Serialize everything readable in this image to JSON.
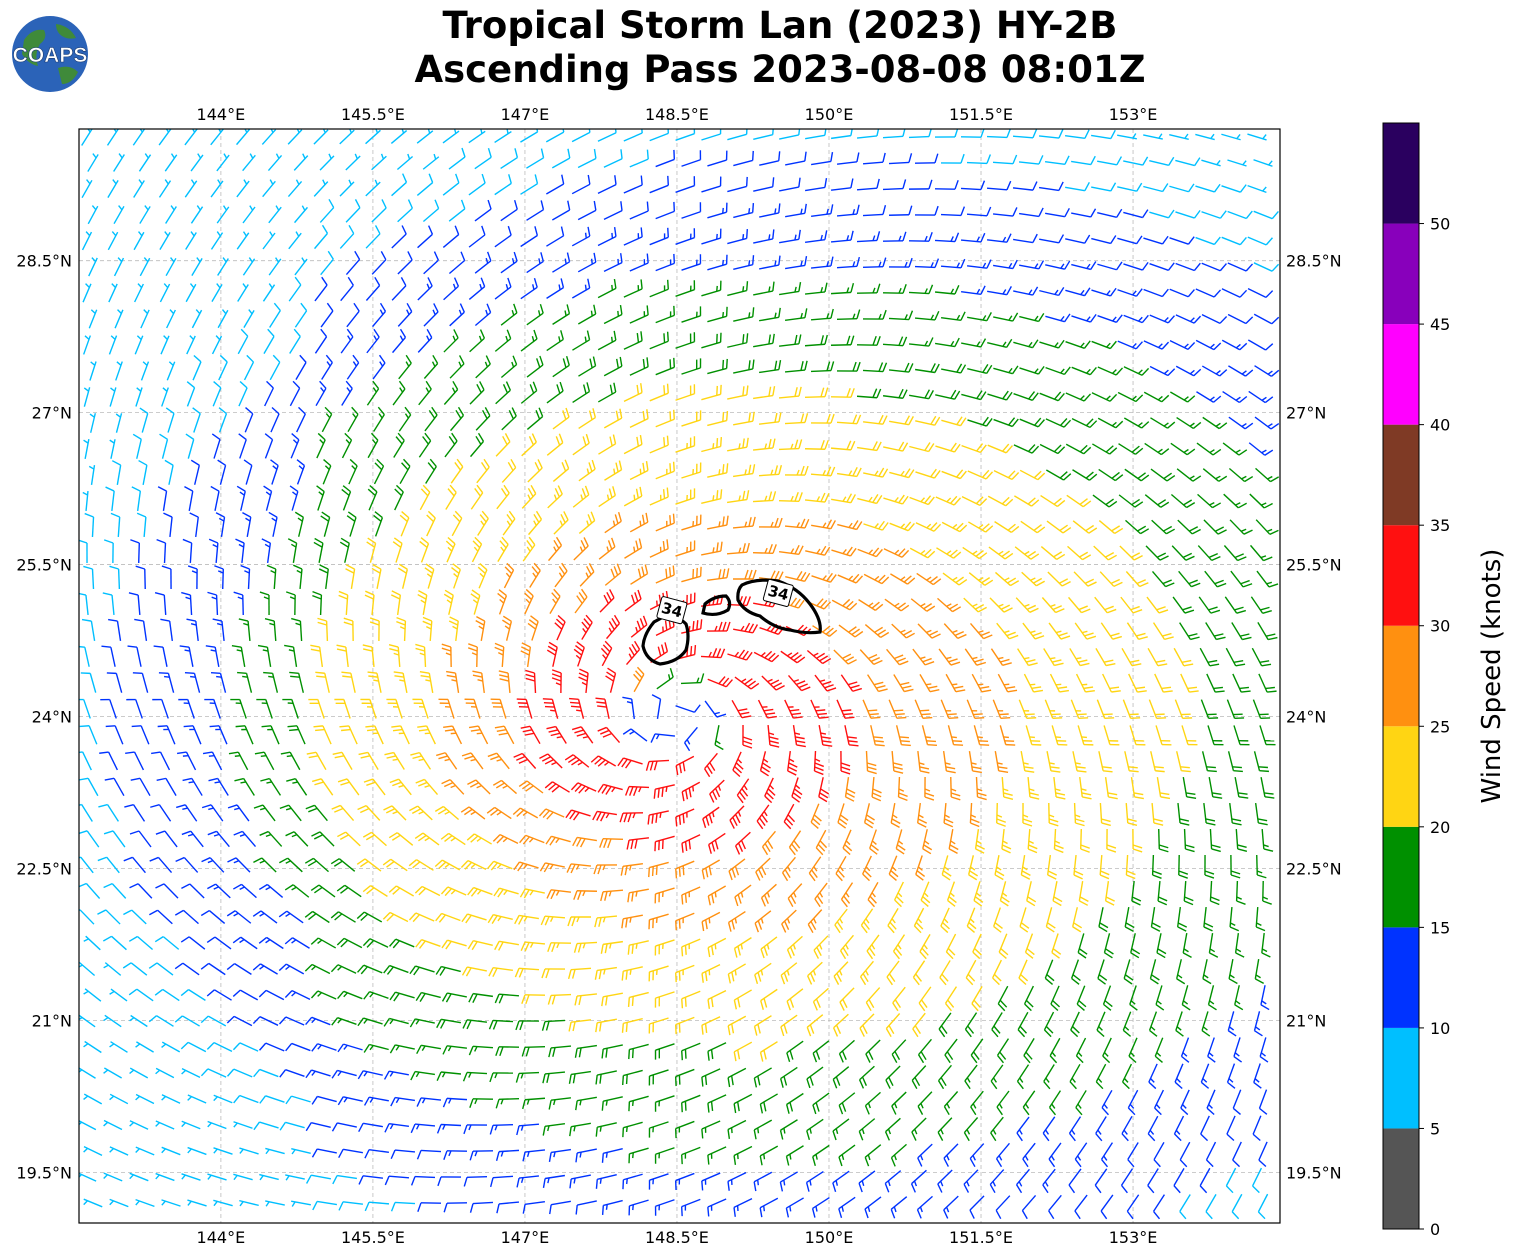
{
  "title": {
    "line1": "Tropical Storm Lan (2023) HY-2B",
    "line2": "Ascending Pass 2023-08-08 08:01Z"
  },
  "logo": {
    "text": "COAPS"
  },
  "map": {
    "lon_range": [
      142.6,
      154.45
    ],
    "lat_range": [
      19.0,
      29.8
    ],
    "lon_ticks": [
      "144°E",
      "145.5°E",
      "147°E",
      "148.5°E",
      "150°E",
      "151.5°E",
      "153°E"
    ],
    "lon_tick_values": [
      144,
      145.5,
      147,
      148.5,
      150,
      151.5,
      153
    ],
    "lat_ticks": [
      "28.5°N",
      "27°N",
      "25.5°N",
      "24°N",
      "22.5°N",
      "21°N",
      "19.5°N"
    ],
    "lat_tick_values": [
      28.5,
      27,
      25.5,
      24,
      22.5,
      21,
      19.5
    ],
    "storm_center": {
      "lon": 148.5,
      "lat": 24.0
    },
    "contour_label": "34",
    "contour_labels": [
      {
        "text": "34",
        "lon": 148.45,
        "lat": 25.05
      },
      {
        "text": "34",
        "lon": 149.5,
        "lat": 25.22
      }
    ]
  },
  "colorbar": {
    "label": "Wind Speed (knots)",
    "ticks": [
      "0",
      "5",
      "10",
      "15",
      "20",
      "25",
      "30",
      "35",
      "40",
      "45",
      "50"
    ],
    "bins": [
      {
        "from": 0,
        "to": 5,
        "color": "#555555"
      },
      {
        "from": 5,
        "to": 10,
        "color": "#00bfff"
      },
      {
        "from": 10,
        "to": 15,
        "color": "#0033ff"
      },
      {
        "from": 15,
        "to": 20,
        "color": "#009000"
      },
      {
        "from": 20,
        "to": 25,
        "color": "#ffd513"
      },
      {
        "from": 25,
        "to": 30,
        "color": "#ff9010"
      },
      {
        "from": 30,
        "to": 35,
        "color": "#ff1010"
      },
      {
        "from": 35,
        "to": 40,
        "color": "#7f3a25"
      },
      {
        "from": 40,
        "to": 45,
        "color": "#ff00ff"
      },
      {
        "from": 45,
        "to": 50,
        "color": "#8800bb"
      },
      {
        "from": 50,
        "to": 55,
        "color": "#2a005f"
      }
    ]
  }
}
